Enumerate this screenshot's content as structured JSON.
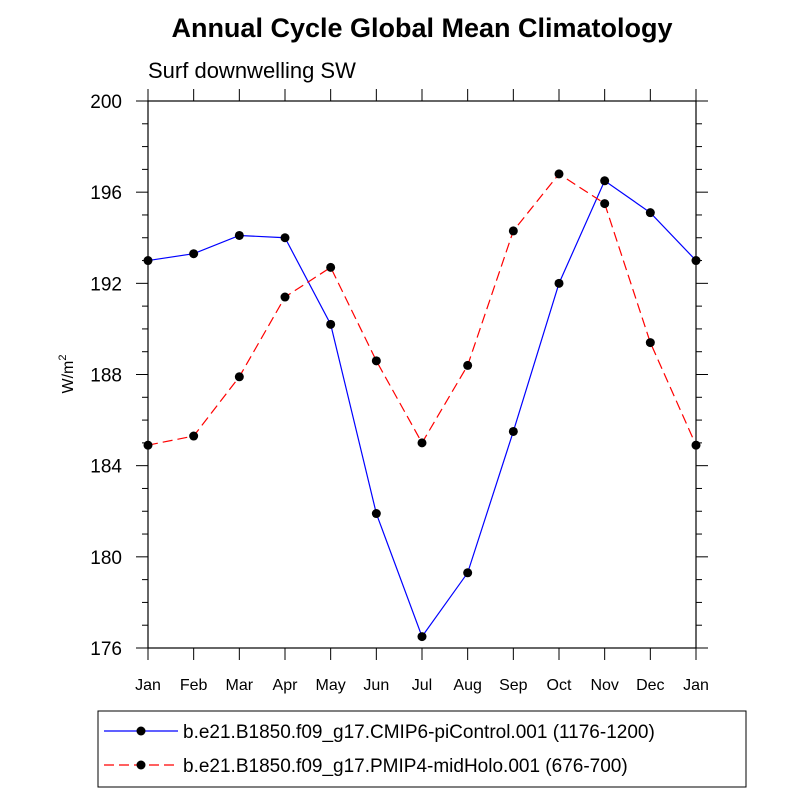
{
  "chart_data": {
    "type": "line",
    "title": "Annual Cycle Global Mean Climatology",
    "subtitle": "Surf downwelling SW",
    "ylabel": "W/m",
    "ylabel_superscript": "2",
    "xlabel": "",
    "categories": [
      "Jan",
      "Feb",
      "Mar",
      "Apr",
      "May",
      "Jun",
      "Jul",
      "Aug",
      "Sep",
      "Oct",
      "Nov",
      "Dec",
      "Jan"
    ],
    "ylim": [
      176,
      200
    ],
    "yticks": [
      "176",
      "180",
      "184",
      "188",
      "192",
      "196",
      "200"
    ],
    "grid": false,
    "legend_position": "bottom",
    "series": [
      {
        "name": "b.e21.B1850.f09_g17.CMIP6-piControl.001 (1176-1200)",
        "color": "#0000ff",
        "dash": "solid",
        "values": [
          193.0,
          193.3,
          194.1,
          194.0,
          190.2,
          181.9,
          176.5,
          179.3,
          185.5,
          192.0,
          196.5,
          195.1,
          193.0
        ]
      },
      {
        "name": "b.e21.B1850.f09_g17.PMIP4-midHolo.001 (676-700)",
        "color": "#ff0000",
        "dash": "dashed",
        "values": [
          184.9,
          185.3,
          187.9,
          191.4,
          192.7,
          188.6,
          185.0,
          188.4,
          194.3,
          196.8,
          195.5,
          189.4,
          184.9
        ]
      }
    ]
  }
}
